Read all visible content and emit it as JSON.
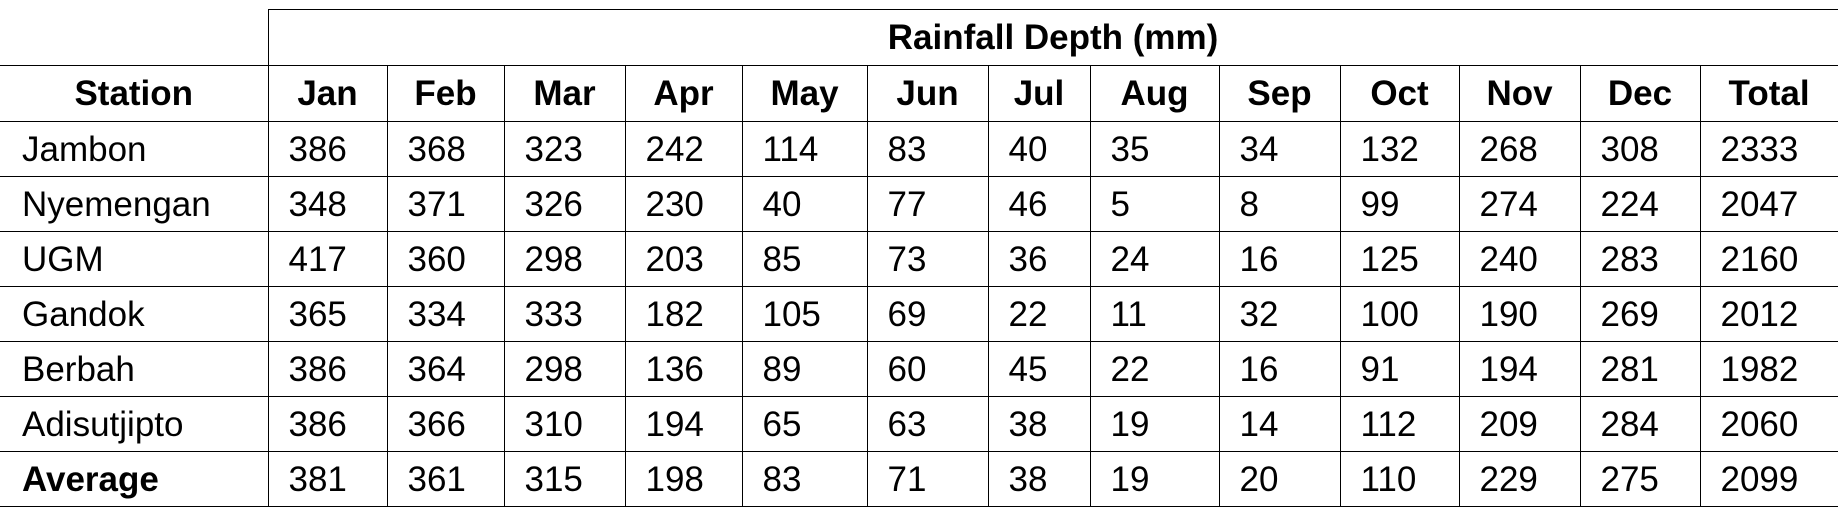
{
  "table": {
    "header_title": "Rainfall Depth (mm)",
    "columns": [
      "Station",
      "Jan",
      "Feb",
      "Mar",
      "Apr",
      "May",
      "Jun",
      "Jul",
      "Aug",
      "Sep",
      "Oct",
      "Nov",
      "Dec",
      "Total"
    ],
    "rows": [
      [
        "Jambon",
        386,
        368,
        323,
        242,
        114,
        83,
        40,
        35,
        34,
        132,
        268,
        308,
        2333
      ],
      [
        "Nyemengan",
        348,
        371,
        326,
        230,
        40,
        77,
        46,
        5,
        8,
        99,
        274,
        224,
        2047
      ],
      [
        "UGM",
        417,
        360,
        298,
        203,
        85,
        73,
        36,
        24,
        16,
        125,
        240,
        283,
        2160
      ],
      [
        "Gandok",
        365,
        334,
        333,
        182,
        105,
        69,
        22,
        11,
        32,
        100,
        190,
        269,
        2012
      ],
      [
        "Berbah",
        386,
        364,
        298,
        136,
        89,
        60,
        45,
        22,
        16,
        91,
        194,
        281,
        1982
      ],
      [
        "Adisutjipto",
        386,
        366,
        310,
        194,
        65,
        63,
        38,
        19,
        14,
        112,
        209,
        284,
        2060
      ],
      [
        "Average",
        381,
        361,
        315,
        198,
        83,
        71,
        38,
        19,
        20,
        110,
        229,
        275,
        2099
      ]
    ]
  }
}
